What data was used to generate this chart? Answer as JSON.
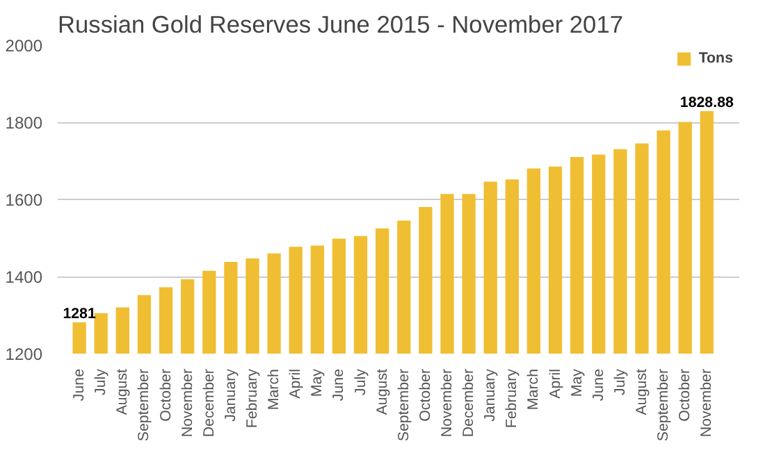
{
  "chart_data": {
    "type": "bar",
    "title": "Russian Gold Reserves June 2015 - November 2017",
    "categories": [
      "June",
      "July",
      "August",
      "September",
      "October",
      "November",
      "December",
      "January",
      "February",
      "March",
      "April",
      "May",
      "June",
      "July",
      "August",
      "September",
      "October",
      "November",
      "December",
      "January",
      "February",
      "March",
      "April",
      "May",
      "June",
      "July",
      "August",
      "September",
      "October",
      "November"
    ],
    "series": [
      {
        "name": "Tons",
        "color": "#f0be32",
        "values": [
          1281,
          1305,
          1320,
          1352,
          1372,
          1393,
          1415,
          1438,
          1447,
          1460,
          1477,
          1480,
          1498,
          1505,
          1525,
          1545,
          1580,
          1614,
          1614,
          1646,
          1652,
          1680,
          1685,
          1710,
          1716,
          1730,
          1745,
          1779,
          1801,
          1828.88
        ],
        "value_labels": [
          "1281",
          null,
          null,
          null,
          null,
          null,
          null,
          null,
          null,
          null,
          null,
          null,
          null,
          null,
          null,
          null,
          null,
          null,
          null,
          null,
          null,
          null,
          null,
          null,
          null,
          null,
          null,
          null,
          null,
          "1828.88"
        ]
      }
    ],
    "ylim": [
      1200,
      2000
    ],
    "yticks": [
      1200,
      1400,
      1600,
      1800,
      2000
    ],
    "grid": "y",
    "legend": "top right"
  }
}
